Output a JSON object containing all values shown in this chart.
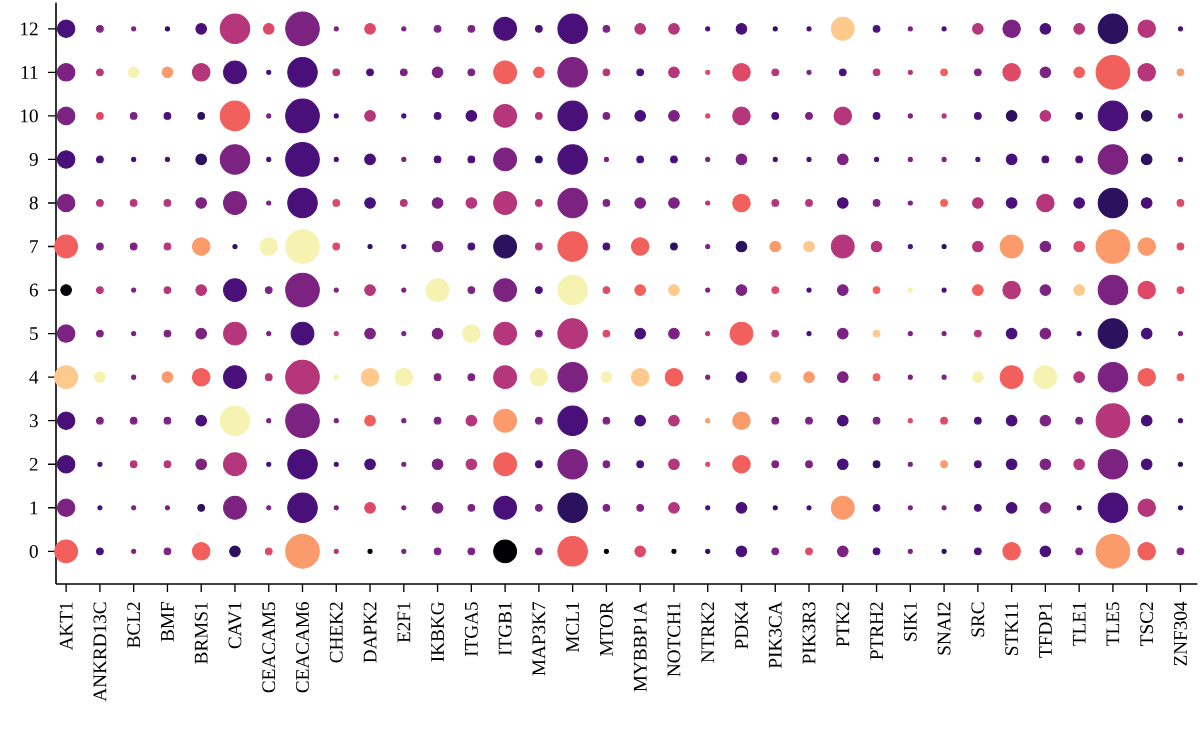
{
  "chart_data": {
    "type": "bubble",
    "marker": "circle",
    "legend": false,
    "grid": false,
    "categories": [
      "AKT1",
      "ANKRD13C",
      "BCL2",
      "BMF",
      "BRMS1",
      "CAV1",
      "CEACAM5",
      "CEACAM6",
      "CHEK2",
      "DAPK2",
      "E2F1",
      "IKBKG",
      "ITGA5",
      "ITGB1",
      "MAP3K7",
      "MCL1",
      "MTOR",
      "MYBBP1A",
      "NOTCH1",
      "NTRK2",
      "PDK4",
      "PIK3CA",
      "PIK3R3",
      "PTK2",
      "PTRH2",
      "SIK1",
      "SNAI2",
      "SRC",
      "STK11",
      "TFDP1",
      "TLE1",
      "TLE5",
      "TSC2",
      "ZNF304"
    ],
    "ylim": [
      -0.75,
      12.6
    ],
    "yticks": [
      0,
      1,
      2,
      3,
      4,
      5,
      6,
      7,
      8,
      9,
      10,
      11,
      12
    ],
    "series": [
      {
        "values": [
          0,
          0,
          0,
          0,
          0,
          0,
          0,
          0,
          0,
          0,
          0,
          0,
          0,
          0,
          0,
          0,
          0,
          0,
          0,
          0,
          0,
          0,
          0,
          0,
          0,
          0,
          0,
          0,
          0,
          0,
          0,
          0,
          0,
          0
        ],
        "sizes": [
          0.46,
          0.04,
          0.015,
          0.04,
          0.27,
          0.1,
          0.04,
          1,
          0.015,
          0.015,
          0.015,
          0.04,
          0.04,
          0.46,
          0.04,
          0.77,
          0.015,
          0.1,
          0.015,
          0.015,
          0.1,
          0.04,
          0.04,
          0.1,
          0.04,
          0.015,
          0.015,
          0.04,
          0.27,
          0.1,
          0.04,
          1,
          0.27,
          0.04
        ],
        "colors": [
          "#f1605d",
          "#4a1079",
          "#7c2382",
          "#7c2382",
          "#f1605d",
          "#2c115f",
          "#de4968",
          "#fb9b6b",
          "#b5367a",
          "#000004",
          "#7c2382",
          "#7c2382",
          "#7c2382",
          "#000004",
          "#7c2382",
          "#f1605d",
          "#000004",
          "#de4968",
          "#000004",
          "#2c115f",
          "#4a1079",
          "#7c2382",
          "#de4968",
          "#7c2382",
          "#4a1079",
          "#7c2382",
          "#2c115f",
          "#4a1079",
          "#f1605d",
          "#4a1079",
          "#7c2382",
          "#fb9b6b",
          "#f1605d",
          "#7c2382"
        ]
      },
      {
        "values": [
          1,
          1,
          1,
          1,
          1,
          1,
          1,
          1,
          1,
          1,
          1,
          1,
          1,
          1,
          1,
          1,
          1,
          1,
          1,
          1,
          1,
          1,
          1,
          1,
          1,
          1,
          1,
          1,
          1,
          1,
          1,
          1,
          1,
          1
        ],
        "sizes": [
          0.27,
          0.015,
          0.015,
          0.015,
          0.04,
          0.46,
          0.015,
          0.77,
          0.015,
          0.1,
          0.015,
          0.1,
          0.04,
          0.46,
          0.04,
          0.77,
          0.04,
          0.04,
          0.1,
          0.015,
          0.1,
          0.015,
          0.015,
          0.46,
          0.04,
          0.015,
          0.015,
          0.04,
          0.1,
          0.1,
          0.015,
          0.77,
          0.27,
          0.015
        ],
        "colors": [
          "#7c2382",
          "#4a1079",
          "#7c2382",
          "#7c2382",
          "#2c115f",
          "#7c2382",
          "#7c2382",
          "#4a1079",
          "#7c2382",
          "#de4968",
          "#7c2382",
          "#7c2382",
          "#7c2382",
          "#4a1079",
          "#7c2382",
          "#2c115f",
          "#7c2382",
          "#7c2382",
          "#b5367a",
          "#4a1079",
          "#4a1079",
          "#2c115f",
          "#4a1079",
          "#fb9b6b",
          "#4a1079",
          "#7c2382",
          "#7c2382",
          "#4a1079",
          "#4a1079",
          "#7c2382",
          "#2c115f",
          "#4a1079",
          "#b5367a",
          "#2c115f"
        ]
      },
      {
        "values": [
          2,
          2,
          2,
          2,
          2,
          2,
          2,
          2,
          2,
          2,
          2,
          2,
          2,
          2,
          2,
          2,
          2,
          2,
          2,
          2,
          2,
          2,
          2,
          2,
          2,
          2,
          2,
          2,
          2,
          2,
          2,
          2,
          2,
          2
        ],
        "sizes": [
          0.27,
          0.015,
          0.04,
          0.04,
          0.1,
          0.46,
          0.015,
          0.77,
          0.015,
          0.1,
          0.015,
          0.1,
          0.1,
          0.46,
          0.04,
          0.77,
          0.04,
          0.04,
          0.1,
          0.015,
          0.27,
          0.04,
          0.04,
          0.1,
          0.04,
          0.015,
          0.04,
          0.04,
          0.1,
          0.1,
          0.1,
          0.77,
          0.1,
          0.015
        ],
        "colors": [
          "#4a1079",
          "#4a1079",
          "#b5367a",
          "#b5367a",
          "#7c2382",
          "#b5367a",
          "#4a1079",
          "#4a1079",
          "#4a1079",
          "#4a1079",
          "#7c2382",
          "#7c2382",
          "#b5367a",
          "#f1605d",
          "#4a1079",
          "#7c2382",
          "#7c2382",
          "#4a1079",
          "#b5367a",
          "#de4968",
          "#f1605d",
          "#7c2382",
          "#7c2382",
          "#4a1079",
          "#2c115f",
          "#7c2382",
          "#fb9b6b",
          "#4a1079",
          "#4a1079",
          "#7c2382",
          "#b5367a",
          "#7c2382",
          "#4a1079",
          "#2c115f"
        ]
      },
      {
        "values": [
          3,
          3,
          3,
          3,
          3,
          3,
          3,
          3,
          3,
          3,
          3,
          3,
          3,
          3,
          3,
          3,
          3,
          3,
          3,
          3,
          3,
          3,
          3,
          3,
          3,
          3,
          3,
          3,
          3,
          3,
          3,
          3,
          3,
          3
        ],
        "sizes": [
          0.27,
          0.04,
          0.04,
          0.04,
          0.1,
          0.77,
          0.015,
          1,
          0.015,
          0.1,
          0.015,
          0.04,
          0.1,
          0.46,
          0.04,
          0.77,
          0.04,
          0.1,
          0.1,
          0.015,
          0.27,
          0.04,
          0.04,
          0.1,
          0.04,
          0.015,
          0.04,
          0.04,
          0.1,
          0.1,
          0.04,
          1,
          0.1,
          0.015
        ],
        "colors": [
          "#4a1079",
          "#7c2382",
          "#7c2382",
          "#7c2382",
          "#4a1079",
          "#f6f2b2",
          "#7c2382",
          "#7c2382",
          "#7c2382",
          "#f1605d",
          "#7c2382",
          "#7c2382",
          "#b5367a",
          "#fb9b6b",
          "#7c2382",
          "#4a1079",
          "#7c2382",
          "#4a1079",
          "#b5367a",
          "#fb9b6b",
          "#fb9b6b",
          "#7c2382",
          "#7c2382",
          "#4a1079",
          "#7c2382",
          "#de4968",
          "#de4968",
          "#4a1079",
          "#4a1079",
          "#7c2382",
          "#7c2382",
          "#b5367a",
          "#4a1079",
          "#4a1079"
        ]
      },
      {
        "values": [
          4,
          4,
          4,
          4,
          4,
          4,
          4,
          4,
          4,
          4,
          4,
          4,
          4,
          4,
          4,
          4,
          4,
          4,
          4,
          4,
          4,
          4,
          4,
          4,
          4,
          4,
          4,
          4,
          4,
          4,
          4,
          4,
          4,
          4
        ],
        "sizes": [
          0.46,
          0.1,
          0.015,
          0.1,
          0.27,
          0.46,
          0.04,
          1,
          0.015,
          0.27,
          0.27,
          0.04,
          0.04,
          0.46,
          0.27,
          0.77,
          0.1,
          0.27,
          0.27,
          0.015,
          0.1,
          0.1,
          0.1,
          0.1,
          0.04,
          0.015,
          0.015,
          0.1,
          0.46,
          0.46,
          0.1,
          0.77,
          0.27,
          0.04
        ],
        "colors": [
          "#fec98d",
          "#f6f2b2",
          "#7c2382",
          "#fb9b6b",
          "#f1605d",
          "#4a1079",
          "#b5367a",
          "#b5367a",
          "#f6f2b2",
          "#fec98d",
          "#f6f2b2",
          "#7c2382",
          "#7c2382",
          "#b5367a",
          "#f6f2b2",
          "#7c2382",
          "#f6f2b2",
          "#fec98d",
          "#f1605d",
          "#7c2382",
          "#4a1079",
          "#fec98d",
          "#fb9b6b",
          "#7c2382",
          "#f1605d",
          "#7c2382",
          "#7c2382",
          "#f6f2b2",
          "#f1605d",
          "#f6f2b2",
          "#b5367a",
          "#7c2382",
          "#f1605d",
          "#f1605d"
        ]
      },
      {
        "values": [
          5,
          5,
          5,
          5,
          5,
          5,
          5,
          5,
          5,
          5,
          5,
          5,
          5,
          5,
          5,
          5,
          5,
          5,
          5,
          5,
          5,
          5,
          5,
          5,
          5,
          5,
          5,
          5,
          5,
          5,
          5,
          5,
          5,
          5
        ],
        "sizes": [
          0.27,
          0.04,
          0.015,
          0.04,
          0.1,
          0.46,
          0.015,
          0.46,
          0.015,
          0.1,
          0.015,
          0.1,
          0.27,
          0.46,
          0.04,
          0.77,
          0.04,
          0.1,
          0.1,
          0.015,
          0.46,
          0.04,
          0.015,
          0.1,
          0.04,
          0.015,
          0.015,
          0.04,
          0.1,
          0.1,
          0.015,
          0.77,
          0.1,
          0.015
        ],
        "colors": [
          "#7c2382",
          "#7c2382",
          "#7c2382",
          "#7c2382",
          "#7c2382",
          "#b5367a",
          "#7c2382",
          "#4a1079",
          "#b5367a",
          "#7c2382",
          "#7c2382",
          "#7c2382",
          "#f6f2b2",
          "#b5367a",
          "#7c2382",
          "#b5367a",
          "#de4968",
          "#4a1079",
          "#7c2382",
          "#b5367a",
          "#f1605d",
          "#b5367a",
          "#4a1079",
          "#7c2382",
          "#fec98d",
          "#7c2382",
          "#7c2382",
          "#b5367a",
          "#4a1079",
          "#7c2382",
          "#4a1079",
          "#2c115f",
          "#4a1079",
          "#7c2382"
        ]
      },
      {
        "values": [
          6,
          6,
          6,
          6,
          6,
          6,
          6,
          6,
          6,
          6,
          6,
          6,
          6,
          6,
          6,
          6,
          6,
          6,
          6,
          6,
          6,
          6,
          6,
          6,
          6,
          6,
          6,
          6,
          6,
          6,
          6,
          6,
          6,
          6
        ],
        "sizes": [
          0.1,
          0.04,
          0.015,
          0.04,
          0.1,
          0.46,
          0.04,
          1,
          0.015,
          0.1,
          0.015,
          0.46,
          0.04,
          0.46,
          0.04,
          0.77,
          0.04,
          0.1,
          0.1,
          0.015,
          0.1,
          0.04,
          0.015,
          0.1,
          0.04,
          0.015,
          0.015,
          0.1,
          0.27,
          0.1,
          0.1,
          0.77,
          0.27,
          0.04
        ],
        "colors": [
          "#000004",
          "#b5367a",
          "#7c2382",
          "#b5367a",
          "#b5367a",
          "#4a1079",
          "#7c2382",
          "#7c2382",
          "#7c2382",
          "#b5367a",
          "#7c2382",
          "#f6f2b2",
          "#7c2382",
          "#7c2382",
          "#4a1079",
          "#f6f2b2",
          "#de4968",
          "#f1605d",
          "#fec98d",
          "#7c2382",
          "#7c2382",
          "#de4968",
          "#4a1079",
          "#7c2382",
          "#f1605d",
          "#f6f2b2",
          "#4a1079",
          "#f1605d",
          "#b5367a",
          "#7c2382",
          "#fec98d",
          "#7c2382",
          "#de4968",
          "#de4968"
        ]
      },
      {
        "values": [
          7,
          7,
          7,
          7,
          7,
          7,
          7,
          7,
          7,
          7,
          7,
          7,
          7,
          7,
          7,
          7,
          7,
          7,
          7,
          7,
          7,
          7,
          7,
          7,
          7,
          7,
          7,
          7,
          7,
          7,
          7,
          7,
          7,
          7
        ],
        "sizes": [
          0.46,
          0.04,
          0.04,
          0.04,
          0.27,
          0.015,
          0.27,
          1,
          0.04,
          0.015,
          0.015,
          0.1,
          0.04,
          0.46,
          0.04,
          0.77,
          0.04,
          0.27,
          0.04,
          0.015,
          0.1,
          0.1,
          0.1,
          0.46,
          0.1,
          0.015,
          0.015,
          0.1,
          0.46,
          0.1,
          0.1,
          1,
          0.27,
          0.04
        ],
        "colors": [
          "#f1605d",
          "#7c2382",
          "#7c2382",
          "#b5367a",
          "#fb9b6b",
          "#2c115f",
          "#f6f2b2",
          "#f6f2b2",
          "#de4968",
          "#2c115f",
          "#4a1079",
          "#7c2382",
          "#4a1079",
          "#2c115f",
          "#b5367a",
          "#f1605d",
          "#4a1079",
          "#f1605d",
          "#2c115f",
          "#7c2382",
          "#2c115f",
          "#fb9b6b",
          "#fec98d",
          "#b5367a",
          "#b5367a",
          "#4a1079",
          "#2c115f",
          "#b5367a",
          "#fb9b6b",
          "#7c2382",
          "#de4968",
          "#fb9b6b",
          "#fb9b6b",
          "#de4968"
        ]
      },
      {
        "values": [
          8,
          8,
          8,
          8,
          8,
          8,
          8,
          8,
          8,
          8,
          8,
          8,
          8,
          8,
          8,
          8,
          8,
          8,
          8,
          8,
          8,
          8,
          8,
          8,
          8,
          8,
          8,
          8,
          8,
          8,
          8,
          8,
          8,
          8
        ],
        "sizes": [
          0.27,
          0.04,
          0.04,
          0.04,
          0.1,
          0.46,
          0.015,
          0.77,
          0.04,
          0.1,
          0.04,
          0.1,
          0.1,
          0.46,
          0.04,
          0.77,
          0.04,
          0.1,
          0.1,
          0.015,
          0.27,
          0.04,
          0.04,
          0.1,
          0.04,
          0.015,
          0.04,
          0.1,
          0.1,
          0.27,
          0.1,
          0.77,
          0.1,
          0.04
        ],
        "colors": [
          "#7c2382",
          "#b5367a",
          "#b5367a",
          "#b5367a",
          "#7c2382",
          "#7c2382",
          "#7c2382",
          "#4a1079",
          "#de4968",
          "#4a1079",
          "#b5367a",
          "#7c2382",
          "#b5367a",
          "#b5367a",
          "#b5367a",
          "#7c2382",
          "#7c2382",
          "#7c2382",
          "#7c2382",
          "#b5367a",
          "#f1605d",
          "#b5367a",
          "#b5367a",
          "#4a1079",
          "#7c2382",
          "#7c2382",
          "#f1605d",
          "#b5367a",
          "#4a1079",
          "#b5367a",
          "#4a1079",
          "#2c115f",
          "#4a1079",
          "#de4968"
        ]
      },
      {
        "values": [
          9,
          9,
          9,
          9,
          9,
          9,
          9,
          9,
          9,
          9,
          9,
          9,
          9,
          9,
          9,
          9,
          9,
          9,
          9,
          9,
          9,
          9,
          9,
          9,
          9,
          9,
          9,
          9,
          9,
          9,
          9,
          9,
          9,
          9
        ],
        "sizes": [
          0.27,
          0.04,
          0.015,
          0.015,
          0.1,
          0.77,
          0.015,
          1,
          0.015,
          0.1,
          0.015,
          0.04,
          0.04,
          0.46,
          0.04,
          0.77,
          0.015,
          0.04,
          0.04,
          0.015,
          0.1,
          0.015,
          0.015,
          0.1,
          0.015,
          0.015,
          0.015,
          0.015,
          0.1,
          0.04,
          0.04,
          0.77,
          0.1,
          0.015
        ],
        "colors": [
          "#4a1079",
          "#4a1079",
          "#4a1079",
          "#4a1079",
          "#2c115f",
          "#7c2382",
          "#4a1079",
          "#4a1079",
          "#4a1079",
          "#4a1079",
          "#7c2382",
          "#4a1079",
          "#4a1079",
          "#7c2382",
          "#2c115f",
          "#4a1079",
          "#7c2382",
          "#4a1079",
          "#4a1079",
          "#7c2382",
          "#7c2382",
          "#4a1079",
          "#4a1079",
          "#7c2382",
          "#4a1079",
          "#7c2382",
          "#7c2382",
          "#4a1079",
          "#4a1079",
          "#4a1079",
          "#4a1079",
          "#7c2382",
          "#2c115f",
          "#4a1079"
        ]
      },
      {
        "values": [
          10,
          10,
          10,
          10,
          10,
          10,
          10,
          10,
          10,
          10,
          10,
          10,
          10,
          10,
          10,
          10,
          10,
          10,
          10,
          10,
          10,
          10,
          10,
          10,
          10,
          10,
          10,
          10,
          10,
          10,
          10,
          10,
          10,
          10
        ],
        "sizes": [
          0.27,
          0.04,
          0.04,
          0.04,
          0.04,
          0.77,
          0.015,
          1,
          0.015,
          0.1,
          0.015,
          0.04,
          0.1,
          0.46,
          0.04,
          0.77,
          0.04,
          0.1,
          0.1,
          0.015,
          0.27,
          0.04,
          0.04,
          0.27,
          0.04,
          0.015,
          0.015,
          0.04,
          0.1,
          0.1,
          0.04,
          0.77,
          0.1,
          0.015
        ],
        "colors": [
          "#7c2382",
          "#de4968",
          "#7c2382",
          "#4a1079",
          "#2c115f",
          "#f1605d",
          "#7c2382",
          "#4a1079",
          "#4a1079",
          "#b5367a",
          "#4a1079",
          "#4a1079",
          "#4a1079",
          "#b5367a",
          "#b5367a",
          "#4a1079",
          "#7c2382",
          "#4a1079",
          "#7c2382",
          "#de4968",
          "#b5367a",
          "#4a1079",
          "#7c2382",
          "#b5367a",
          "#4a1079",
          "#7c2382",
          "#b5367a",
          "#4a1079",
          "#2c115f",
          "#b5367a",
          "#2c115f",
          "#4a1079",
          "#2c115f",
          "#b5367a"
        ]
      },
      {
        "values": [
          11,
          11,
          11,
          11,
          11,
          11,
          11,
          11,
          11,
          11,
          11,
          11,
          11,
          11,
          11,
          11,
          11,
          11,
          11,
          11,
          11,
          11,
          11,
          11,
          11,
          11,
          11,
          11,
          11,
          11,
          11,
          11,
          11,
          11
        ],
        "sizes": [
          0.27,
          0.04,
          0.1,
          0.1,
          0.27,
          0.46,
          0.015,
          0.77,
          0.04,
          0.04,
          0.04,
          0.1,
          0.04,
          0.46,
          0.1,
          0.77,
          0.04,
          0.04,
          0.1,
          0.015,
          0.27,
          0.04,
          0.015,
          0.04,
          0.04,
          0.015,
          0.04,
          0.04,
          0.27,
          0.1,
          0.1,
          1,
          0.27,
          0.04
        ],
        "colors": [
          "#7c2382",
          "#b5367a",
          "#f6f2b2",
          "#fb9b6b",
          "#b5367a",
          "#4a1079",
          "#4a1079",
          "#4a1079",
          "#b5367a",
          "#4a1079",
          "#7c2382",
          "#7c2382",
          "#7c2382",
          "#f1605d",
          "#f1605d",
          "#7c2382",
          "#b5367a",
          "#4a1079",
          "#b5367a",
          "#de4968",
          "#de4968",
          "#b5367a",
          "#7c2382",
          "#4a1079",
          "#b5367a",
          "#b5367a",
          "#f1605d",
          "#7c2382",
          "#de4968",
          "#7c2382",
          "#f1605d",
          "#f1605d",
          "#b5367a",
          "#fb9b6b"
        ]
      },
      {
        "values": [
          12,
          12,
          12,
          12,
          12,
          12,
          12,
          12,
          12,
          12,
          12,
          12,
          12,
          12,
          12,
          12,
          12,
          12,
          12,
          12,
          12,
          12,
          12,
          12,
          12,
          12,
          12,
          12,
          12,
          12,
          12,
          12,
          12,
          12
        ],
        "sizes": [
          0.27,
          0.04,
          0.015,
          0.015,
          0.1,
          0.77,
          0.1,
          1,
          0.015,
          0.1,
          0.015,
          0.04,
          0.04,
          0.46,
          0.04,
          0.77,
          0.04,
          0.1,
          0.1,
          0.015,
          0.1,
          0.015,
          0.015,
          0.46,
          0.04,
          0.015,
          0.015,
          0.1,
          0.27,
          0.1,
          0.1,
          0.77,
          0.27,
          0.015
        ],
        "colors": [
          "#4a1079",
          "#7c2382",
          "#7c2382",
          "#2c115f",
          "#4a1079",
          "#b5367a",
          "#de4968",
          "#7c2382",
          "#7c2382",
          "#de4968",
          "#7c2382",
          "#7c2382",
          "#7c2382",
          "#4a1079",
          "#4a1079",
          "#4a1079",
          "#7c2382",
          "#b5367a",
          "#b5367a",
          "#4a1079",
          "#4a1079",
          "#2c115f",
          "#4a1079",
          "#fec98d",
          "#4a1079",
          "#7c2382",
          "#4a1079",
          "#b5367a",
          "#7c2382",
          "#4a1079",
          "#b5367a",
          "#2c115f",
          "#b5367a",
          "#4a1079"
        ]
      }
    ]
  }
}
